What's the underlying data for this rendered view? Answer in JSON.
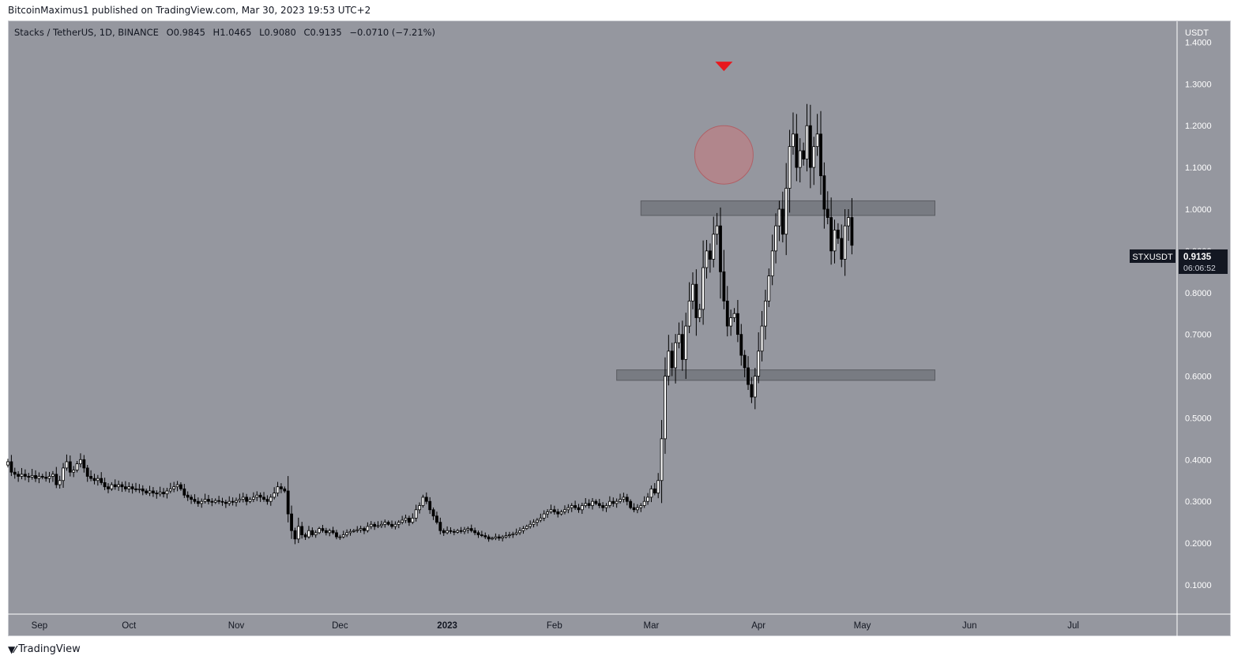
{
  "header": {
    "published": "BitcoinMaximus1 published on TradingView.com, Mar 30, 2023 19:53 UTC+2"
  },
  "legend": {
    "symbol": "Stacks / TetherUS, 1D, BINANCE",
    "o_label": "O",
    "o_value": "0.9845",
    "h_label": "H",
    "h_value": "1.0465",
    "l_label": "L",
    "l_value": "0.9080",
    "c_label": "C",
    "c_value": "0.9135",
    "change": "−0.0710 (−7.21%)"
  },
  "price_tag": {
    "ticker": "STXUSDT",
    "price": "0.9135",
    "countdown": "06:06:52"
  },
  "footer": {
    "logo_text": "TradingView"
  },
  "colors": {
    "background": "#95979f",
    "candle_body": "#000000",
    "marker": "#e8181e",
    "circle": "#c9787c",
    "zone": "#6f7178"
  },
  "chart_data": {
    "type": "candlestick",
    "y_unit": "USDT",
    "ylim": [
      0.03,
      1.45
    ],
    "y_ticks": [
      "1.4000",
      "1.3000",
      "1.2000",
      "1.1000",
      "1.0000",
      "0.9000",
      "0.8000",
      "0.7000",
      "0.6000",
      "0.5000",
      "0.4000",
      "0.3000",
      "0.2000",
      "0.1000"
    ],
    "x_ticks": [
      "Sep",
      "Oct",
      "Nov",
      "Dec",
      "2023",
      "Feb",
      "Mar",
      "Apr",
      "May",
      "Jun",
      "Jul"
    ],
    "x_range": [
      "2022-08-27",
      "2023-07-31"
    ],
    "grid": false,
    "zones": [
      {
        "y_low": 0.985,
        "y_high": 1.02,
        "from": "2023-02-26",
        "to": "2023-05-22"
      },
      {
        "y_low": 0.59,
        "y_high": 0.615,
        "from": "2023-02-19",
        "to": "2023-05-22"
      }
    ],
    "annotations": [
      {
        "type": "down-triangle",
        "x": "2023-03-22",
        "y": 1.34
      },
      {
        "type": "circle",
        "x": "2023-03-22",
        "y": 1.13
      }
    ],
    "series": [
      {
        "start_date": "2022-08-27",
        "close": [
          0.395,
          0.37,
          0.365,
          0.36,
          0.365,
          0.36,
          0.358,
          0.362,
          0.355,
          0.36,
          0.358,
          0.355,
          0.36,
          0.365,
          0.34,
          0.35,
          0.38,
          0.395,
          0.37,
          0.375,
          0.39,
          0.4,
          0.38,
          0.36,
          0.355,
          0.35,
          0.355,
          0.345,
          0.335,
          0.33,
          0.34,
          0.335,
          0.34,
          0.335,
          0.33,
          0.335,
          0.33,
          0.328,
          0.33,
          0.325,
          0.32,
          0.325,
          0.32,
          0.318,
          0.322,
          0.318,
          0.325,
          0.33,
          0.335,
          0.34,
          0.33,
          0.315,
          0.31,
          0.305,
          0.3,
          0.295,
          0.3,
          0.305,
          0.3,
          0.298,
          0.302,
          0.3,
          0.298,
          0.295,
          0.3,
          0.298,
          0.302,
          0.305,
          0.31,
          0.3,
          0.305,
          0.31,
          0.315,
          0.31,
          0.305,
          0.3,
          0.31,
          0.32,
          0.335,
          0.33,
          0.325,
          0.27,
          0.23,
          0.21,
          0.24,
          0.22,
          0.215,
          0.23,
          0.22,
          0.225,
          0.235,
          0.23,
          0.225,
          0.23,
          0.225,
          0.215,
          0.215,
          0.22,
          0.225,
          0.228,
          0.23,
          0.232,
          0.235,
          0.23,
          0.24,
          0.245,
          0.24,
          0.242,
          0.245,
          0.25,
          0.245,
          0.24,
          0.245,
          0.25,
          0.255,
          0.26,
          0.25,
          0.26,
          0.28,
          0.29,
          0.31,
          0.3,
          0.28,
          0.265,
          0.25,
          0.23,
          0.225,
          0.23,
          0.228,
          0.226,
          0.23,
          0.228,
          0.232,
          0.235,
          0.23,
          0.225,
          0.22,
          0.218,
          0.215,
          0.21,
          0.212,
          0.215,
          0.212,
          0.215,
          0.218,
          0.22,
          0.222,
          0.225,
          0.23,
          0.235,
          0.24,
          0.245,
          0.25,
          0.255,
          0.26,
          0.27,
          0.275,
          0.28,
          0.275,
          0.27,
          0.275,
          0.28,
          0.285,
          0.29,
          0.285,
          0.28,
          0.29,
          0.295,
          0.29,
          0.3,
          0.295,
          0.29,
          0.285,
          0.29,
          0.3,
          0.295,
          0.3,
          0.305,
          0.31,
          0.3,
          0.285,
          0.28,
          0.285,
          0.29,
          0.3,
          0.31,
          0.33,
          0.32,
          0.35,
          0.45,
          0.6,
          0.66,
          0.62,
          0.68,
          0.7,
          0.64,
          0.72,
          0.78,
          0.82,
          0.74,
          0.76,
          0.86,
          0.9,
          0.88,
          0.94,
          0.96,
          0.85,
          0.78,
          0.72,
          0.74,
          0.75,
          0.7,
          0.65,
          0.62,
          0.58,
          0.55,
          0.6,
          0.66,
          0.72,
          0.78,
          0.84,
          0.9,
          0.96,
          1.0,
          0.94,
          1.05,
          1.15,
          1.18,
          1.1,
          1.14,
          1.12,
          1.2,
          1.1,
          1.15,
          1.18,
          1.08,
          1.0,
          0.98,
          0.9,
          0.95,
          0.93,
          0.88,
          0.96,
          0.98,
          0.9135
        ]
      }
    ]
  }
}
